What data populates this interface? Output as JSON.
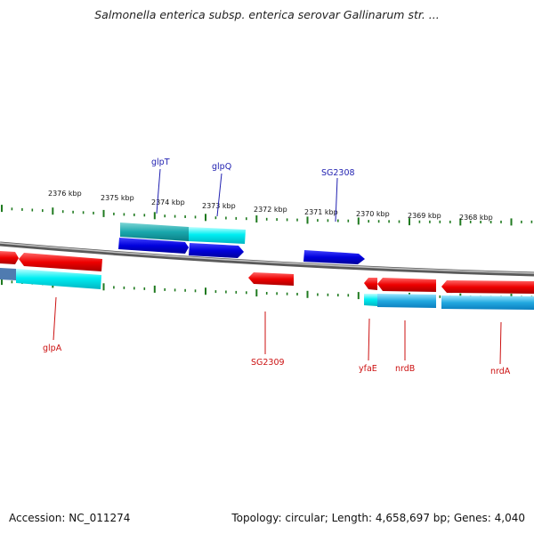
{
  "header": {
    "title": "Salmonella enterica subsp. enterica serovar Gallinarum str. ..."
  },
  "footer": {
    "accession": "Accession: NC_011274",
    "topology": "Topology: circular; Length: 4,658,697 bp; Genes: 4,040"
  },
  "colors": {
    "backbone": "#8a8a8a",
    "tick": "#1f7a1f",
    "forward_gene": "#0000dd",
    "reverse_gene": "#ee0000",
    "forward_label": "#1f1fb0",
    "reverse_label": "#cc1111",
    "cds_cyan": "#00e5ee"
  },
  "scale": {
    "kbp_labels": [
      "2376 kbp",
      "2375 kbp",
      "2374 kbp",
      "2373 kbp",
      "2372 kbp",
      "2371 kbp",
      "2370 kbp",
      "2369 kbp",
      "2368 kbp"
    ]
  },
  "genes": {
    "forward": [
      "glpT",
      "glpQ",
      "SG2308"
    ],
    "reverse": [
      "glpA",
      "SG2309",
      "yfaE",
      "nrdB",
      "nrdA"
    ]
  }
}
